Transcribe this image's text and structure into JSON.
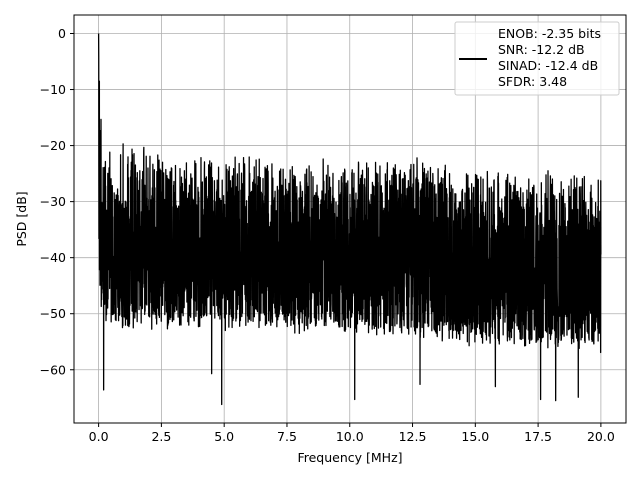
{
  "chart_data": {
    "type": "line",
    "xlabel": "Frequency [MHz]",
    "ylabel": "PSD [dB]",
    "xlim": [
      -0.98,
      21.0
    ],
    "ylim": [
      -69.5,
      3.3
    ],
    "xticks": [
      0.0,
      2.5,
      5.0,
      7.5,
      10.0,
      12.5,
      15.0,
      17.5,
      20.0
    ],
    "xtick_labels": [
      "0.0",
      "2.5",
      "5.0",
      "7.5",
      "10.0",
      "12.5",
      "15.0",
      "17.5",
      "20.0"
    ],
    "yticks": [
      0,
      -10,
      -20,
      -30,
      -40,
      -50,
      -60
    ],
    "ytick_labels": [
      "0",
      "−10",
      "−20",
      "−30",
      "−40",
      "−50",
      "−60"
    ],
    "grid": true,
    "legend_position": "top-right",
    "series": [
      {
        "name": "ENOB: -2.35 bits\nSNR: -12.2 dB\nSINAD: -12.4 dB\nSFDR: 3.48",
        "legend_lines": [
          "ENOB: -2.35 bits",
          "SNR: -12.2 dB",
          "SINAD: -12.4 dB",
          "SFDR: 3.48"
        ],
        "color": "#000000",
        "x_range": [
          0.0,
          20.0
        ],
        "samples": 4000,
        "description_points": {
          "x": [
            0.0,
            0.05,
            0.1,
            0.2,
            0.4,
            0.7,
            1.0,
            2.0,
            5.0,
            10.0,
            11.3,
            15.0,
            20.0
          ],
          "y_upper_envelope": [
            0.0,
            -10.0,
            -15.0,
            -17.5,
            -19.5,
            -20.0,
            -19.5,
            -20.5,
            -22.5,
            -23.5,
            -20.2,
            -24.5,
            -25.5
          ],
          "y_lower_typical": [
            -35.0,
            -45.0,
            -50.0,
            -50.0,
            -50.0,
            -52.0,
            -52.0,
            -52.0,
            -52.0,
            -53.0,
            -53.0,
            -55.0,
            -56.0
          ]
        },
        "deep_dips": [
          {
            "x": 0.2,
            "y": -63.6
          },
          {
            "x": 4.9,
            "y": -66.2
          },
          {
            "x": 4.5,
            "y": -60.7
          },
          {
            "x": 10.2,
            "y": -65.3
          },
          {
            "x": 12.8,
            "y": -62.6
          },
          {
            "x": 15.8,
            "y": -63.0
          },
          {
            "x": 17.6,
            "y": -65.3
          },
          {
            "x": 18.2,
            "y": -65.5
          },
          {
            "x": 19.1,
            "y": -64.9
          }
        ]
      }
    ]
  }
}
